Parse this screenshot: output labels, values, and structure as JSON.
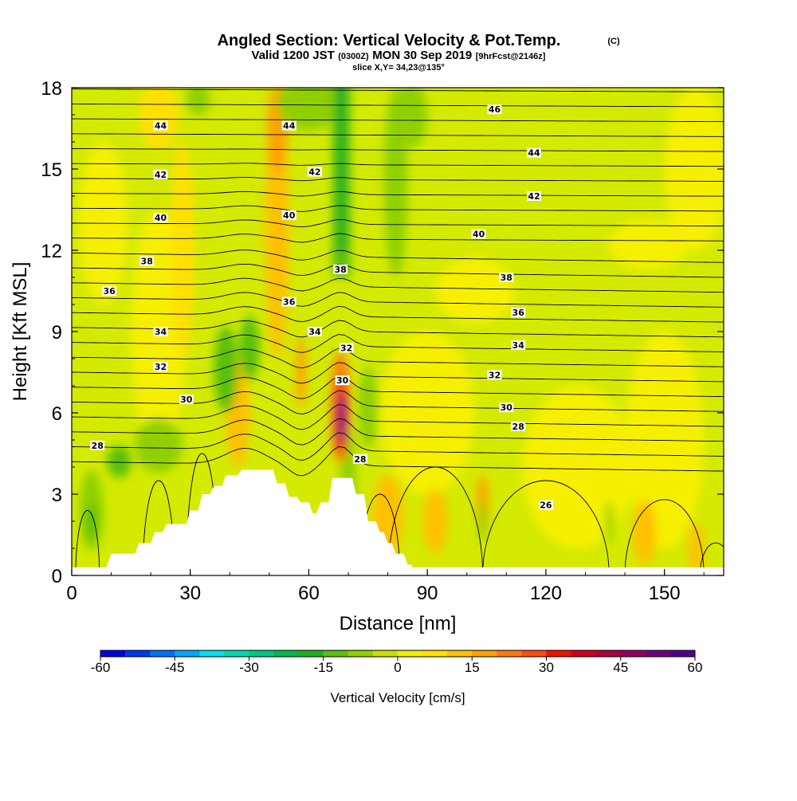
{
  "chart_data": {
    "type": "heatmap",
    "title": "Angled Section: Vertical Velocity & Pot.Temp.",
    "title_mark": "(C)",
    "subtitle_parts": [
      "Valid 1200 JST",
      "(0300Z)",
      "MON 30 Sep 2019",
      "[9hrFcst@2146z]"
    ],
    "slice": "slice X,Y= 34,23@135°",
    "xlabel": "Distance [nm]",
    "ylabel": "Height [Kft MSL]",
    "xlim": [
      0,
      165
    ],
    "ylim": [
      0,
      18
    ],
    "x_ticks": [
      0,
      30,
      60,
      90,
      120,
      150
    ],
    "y_ticks": [
      0,
      3,
      6,
      9,
      12,
      15,
      18
    ],
    "colorbar": {
      "label": "Vertical Velocity [cm/s]",
      "ticks": [
        -60,
        -45,
        -30,
        -15,
        0,
        15,
        30,
        45,
        60
      ],
      "range": [
        -60,
        60
      ],
      "colors": [
        "#0000e0",
        "#0038f0",
        "#0070f8",
        "#00a8f8",
        "#00e0f0",
        "#00d8b0",
        "#00c880",
        "#00b848",
        "#20b020",
        "#58c010",
        "#90d000",
        "#c8e000",
        "#f0f000",
        "#ffe000",
        "#ffc000",
        "#ffa000",
        "#ff7810",
        "#ff4a10",
        "#f01000",
        "#d00020",
        "#b00040",
        "#900060",
        "#700080",
        "#50008c"
      ]
    },
    "isentropes": {
      "unit": "C",
      "labels": [
        {
          "v": "44",
          "x": 22.5,
          "y": 16.6
        },
        {
          "v": "44",
          "x": 55,
          "y": 16.6
        },
        {
          "v": "46",
          "x": 107,
          "y": 17.2
        },
        {
          "v": "44",
          "x": 117,
          "y": 15.6
        },
        {
          "v": "42",
          "x": 22.5,
          "y": 14.8
        },
        {
          "v": "42",
          "x": 61.5,
          "y": 14.9
        },
        {
          "v": "42",
          "x": 117,
          "y": 14.0
        },
        {
          "v": "40",
          "x": 22.5,
          "y": 13.2
        },
        {
          "v": "40",
          "x": 55,
          "y": 13.3
        },
        {
          "v": "40",
          "x": 103,
          "y": 12.6
        },
        {
          "v": "38",
          "x": 19,
          "y": 11.6
        },
        {
          "v": "38",
          "x": 68,
          "y": 11.3
        },
        {
          "v": "38",
          "x": 110,
          "y": 11.0
        },
        {
          "v": "36",
          "x": 9.5,
          "y": 10.5
        },
        {
          "v": "36",
          "x": 55,
          "y": 10.1
        },
        {
          "v": "36",
          "x": 113,
          "y": 9.7
        },
        {
          "v": "34",
          "x": 22.5,
          "y": 9.0
        },
        {
          "v": "34",
          "x": 61.5,
          "y": 9.0
        },
        {
          "v": "34",
          "x": 113,
          "y": 8.5
        },
        {
          "v": "32",
          "x": 69.5,
          "y": 8.4
        },
        {
          "v": "32",
          "x": 22.5,
          "y": 7.7
        },
        {
          "v": "32",
          "x": 107,
          "y": 7.4
        },
        {
          "v": "30",
          "x": 29,
          "y": 6.5
        },
        {
          "v": "30",
          "x": 68.5,
          "y": 7.2
        },
        {
          "v": "30",
          "x": 110,
          "y": 6.2
        },
        {
          "v": "28",
          "x": 6.5,
          "y": 4.8
        },
        {
          "v": "28",
          "x": 113,
          "y": 5.5
        },
        {
          "v": "28",
          "x": 73,
          "y": 4.3
        },
        {
          "v": "26",
          "x": 120,
          "y": 2.6
        }
      ]
    },
    "terrain_top_kft": [
      [
        0,
        0
      ],
      [
        8,
        0
      ],
      [
        10,
        0.8
      ],
      [
        16,
        0.8
      ],
      [
        17,
        1.2
      ],
      [
        20,
        1.2
      ],
      [
        21,
        1.6
      ],
      [
        23,
        1.6
      ],
      [
        24,
        1.9
      ],
      [
        29,
        1.9
      ],
      [
        30,
        2.4
      ],
      [
        32,
        2.4
      ],
      [
        33,
        3.0
      ],
      [
        35,
        3.0
      ],
      [
        36,
        3.3
      ],
      [
        38,
        3.3
      ],
      [
        39,
        3.7
      ],
      [
        42,
        3.7
      ],
      [
        43,
        3.9
      ],
      [
        51,
        3.9
      ],
      [
        52,
        3.4
      ],
      [
        54,
        3.4
      ],
      [
        55,
        2.9
      ],
      [
        57,
        2.9
      ],
      [
        58,
        2.7
      ],
      [
        60,
        2.7
      ],
      [
        61,
        2.3
      ],
      [
        62,
        2.3
      ],
      [
        63,
        2.7
      ],
      [
        65,
        2.7
      ],
      [
        66,
        3.6
      ],
      [
        71,
        3.6
      ],
      [
        72,
        3.0
      ],
      [
        74,
        3.0
      ],
      [
        75,
        2.0
      ],
      [
        77,
        2.0
      ],
      [
        78,
        1.6
      ],
      [
        79,
        1.6
      ],
      [
        80,
        1.2
      ],
      [
        81,
        1.2
      ],
      [
        82,
        0.8
      ],
      [
        84,
        0.8
      ],
      [
        85,
        0.4
      ],
      [
        86,
        0.4
      ],
      [
        87,
        0
      ],
      [
        165,
        0
      ]
    ]
  }
}
